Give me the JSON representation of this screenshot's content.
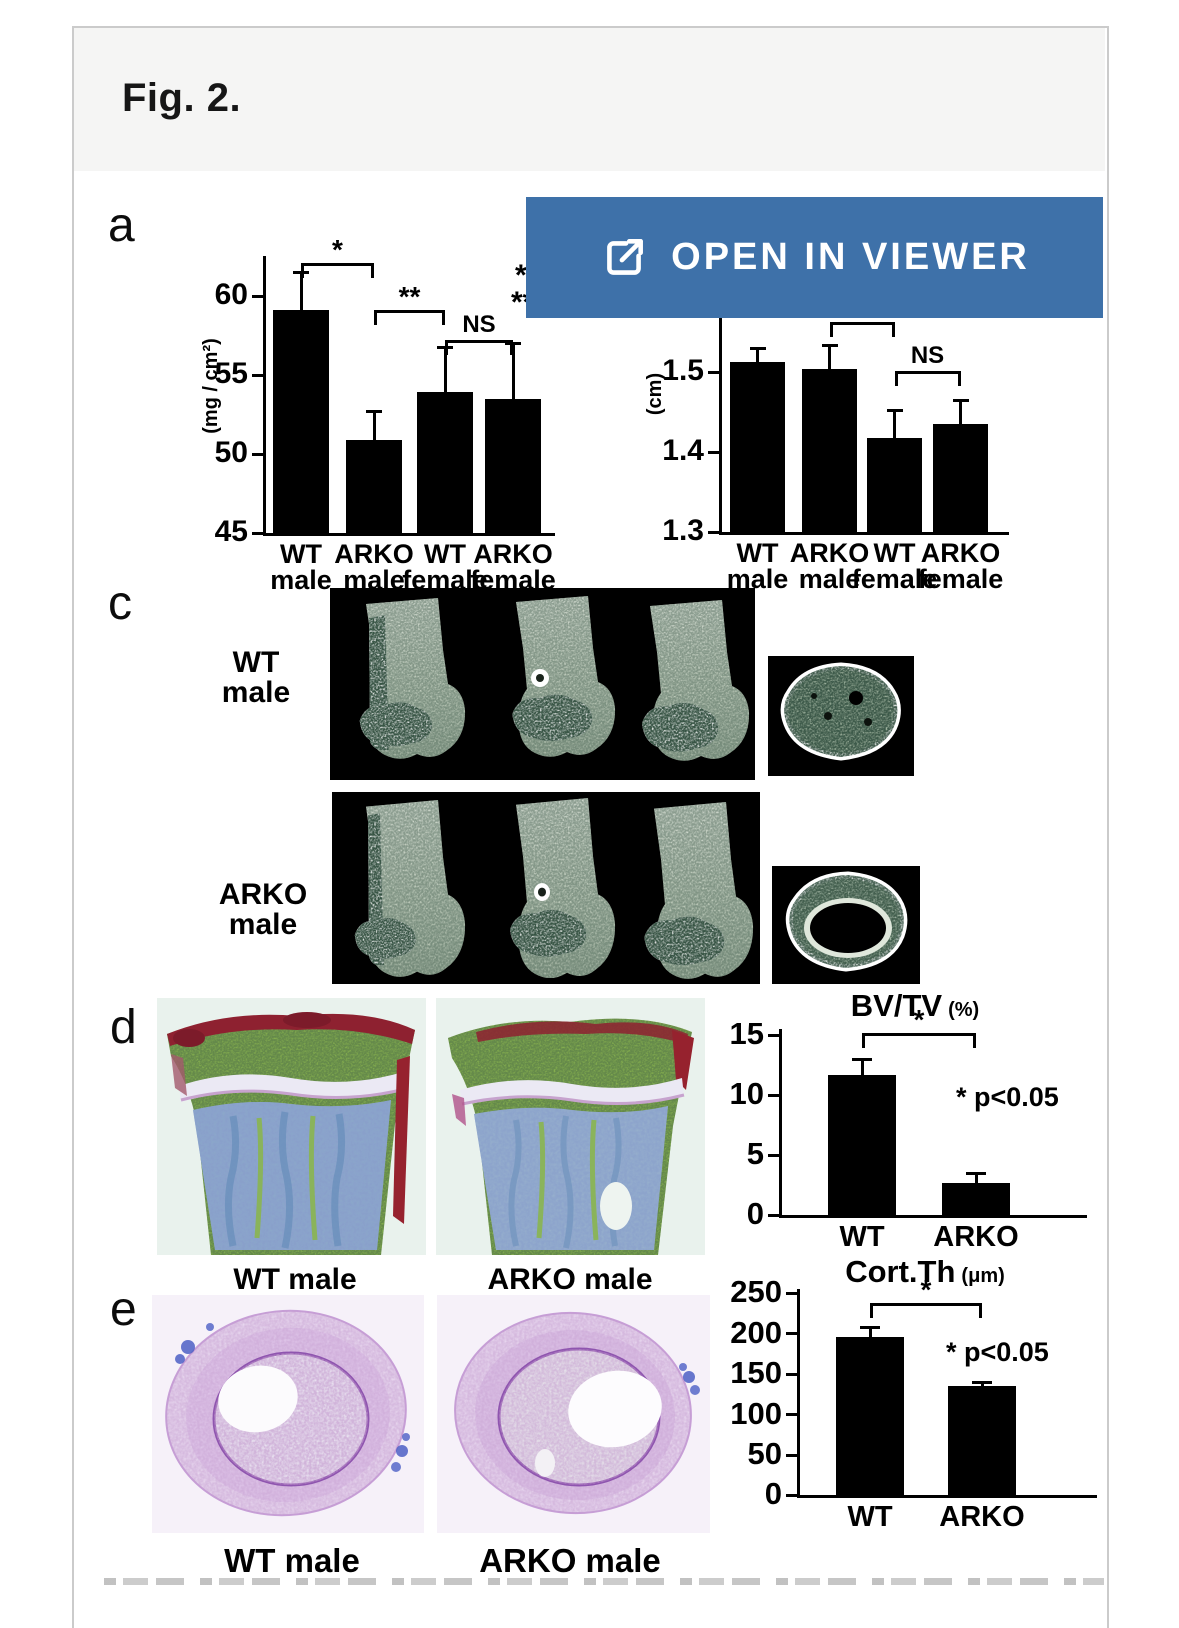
{
  "figure_card": {
    "title": "Fig. 2.",
    "header_bg": "#f5f5f4",
    "body_bg": "#ffffff"
  },
  "viewer_button": {
    "label": "OPEN IN VIEWER",
    "color": "#3e71a9",
    "icon": "open-in-viewer-icon"
  },
  "panels": {
    "a": {
      "label": "a"
    },
    "c": {
      "label": "c",
      "rows": [
        {
          "label": "WT\nmale"
        },
        {
          "label": "ARKO\nmale"
        }
      ]
    },
    "d": {
      "label": "d",
      "captions": [
        "WT male",
        "ARKO male"
      ]
    },
    "e": {
      "label": "e",
      "captions": [
        "WT male",
        "ARKO male"
      ]
    }
  },
  "chart_data": [
    {
      "id": "bmd",
      "type": "bar",
      "panel": "a",
      "title": "",
      "ylabel": "(mg / cm²)",
      "ylim": [
        45,
        62.5
      ],
      "yticks": [
        "45",
        "50",
        "55",
        "60"
      ],
      "categories": [
        "WT\nmale",
        "ARKO\nmale",
        "WT\nfemale",
        "ARKO\nfemale"
      ],
      "values": [
        59.1,
        50.9,
        53.9,
        53.5
      ],
      "errors": [
        2.4,
        1.8,
        2.9,
        3.5
      ],
      "significance": [
        {
          "from": 0,
          "to": 1,
          "y": 62.1,
          "label": "*"
        },
        {
          "from": 1,
          "to": 2,
          "y": 59.1,
          "label": "**"
        },
        {
          "from": 2,
          "to": 3,
          "y": 57.2,
          "label": "NS"
        }
      ],
      "cut_legend": [
        "*",
        "**"
      ]
    },
    {
      "id": "femur-length",
      "type": "bar",
      "panel": "b",
      "title": "",
      "ylabel": "(cm)",
      "ylim": [
        1.3,
        1.575
      ],
      "yticks": [
        "1.3",
        "1.4",
        "1.5"
      ],
      "categories": [
        "WT\nmale",
        "ARKO\nmale",
        "WT\nfemale",
        "ARKO\nfemale"
      ],
      "values": [
        1.512,
        1.504,
        1.418,
        1.435
      ],
      "errors": [
        0.018,
        0.03,
        0.035,
        0.03
      ],
      "significance": [
        {
          "from": 1,
          "to": 2,
          "y": 1.562,
          "label": "**"
        },
        {
          "from": 2,
          "to": 3,
          "y": 1.501,
          "label": "NS"
        }
      ]
    },
    {
      "id": "bvtv",
      "type": "bar",
      "panel": "d",
      "title": "BV/TV",
      "title_unit": "(%)",
      "note": "* p<0.05",
      "ylim": [
        0,
        15.5
      ],
      "yticks": [
        "0",
        "5",
        "10",
        "15"
      ],
      "categories": [
        "WT",
        "ARKO"
      ],
      "values": [
        11.7,
        2.7
      ],
      "errors": [
        1.3,
        0.8
      ],
      "significance": [
        {
          "from": 0,
          "to": 1,
          "y": 15.2,
          "label": "*"
        }
      ]
    },
    {
      "id": "cortth",
      "type": "bar",
      "panel": "e",
      "title": "Cort.Th",
      "title_unit": "(μm)",
      "note": "* p<0.05",
      "ylim": [
        0,
        255
      ],
      "yticks": [
        "0",
        "50",
        "100",
        "150",
        "200",
        "250"
      ],
      "categories": [
        "WT",
        "ARKO"
      ],
      "values": [
        195,
        135
      ],
      "errors": [
        13,
        5
      ],
      "significance": [
        {
          "from": 0,
          "to": 1,
          "y": 238,
          "label": "*"
        }
      ]
    }
  ]
}
